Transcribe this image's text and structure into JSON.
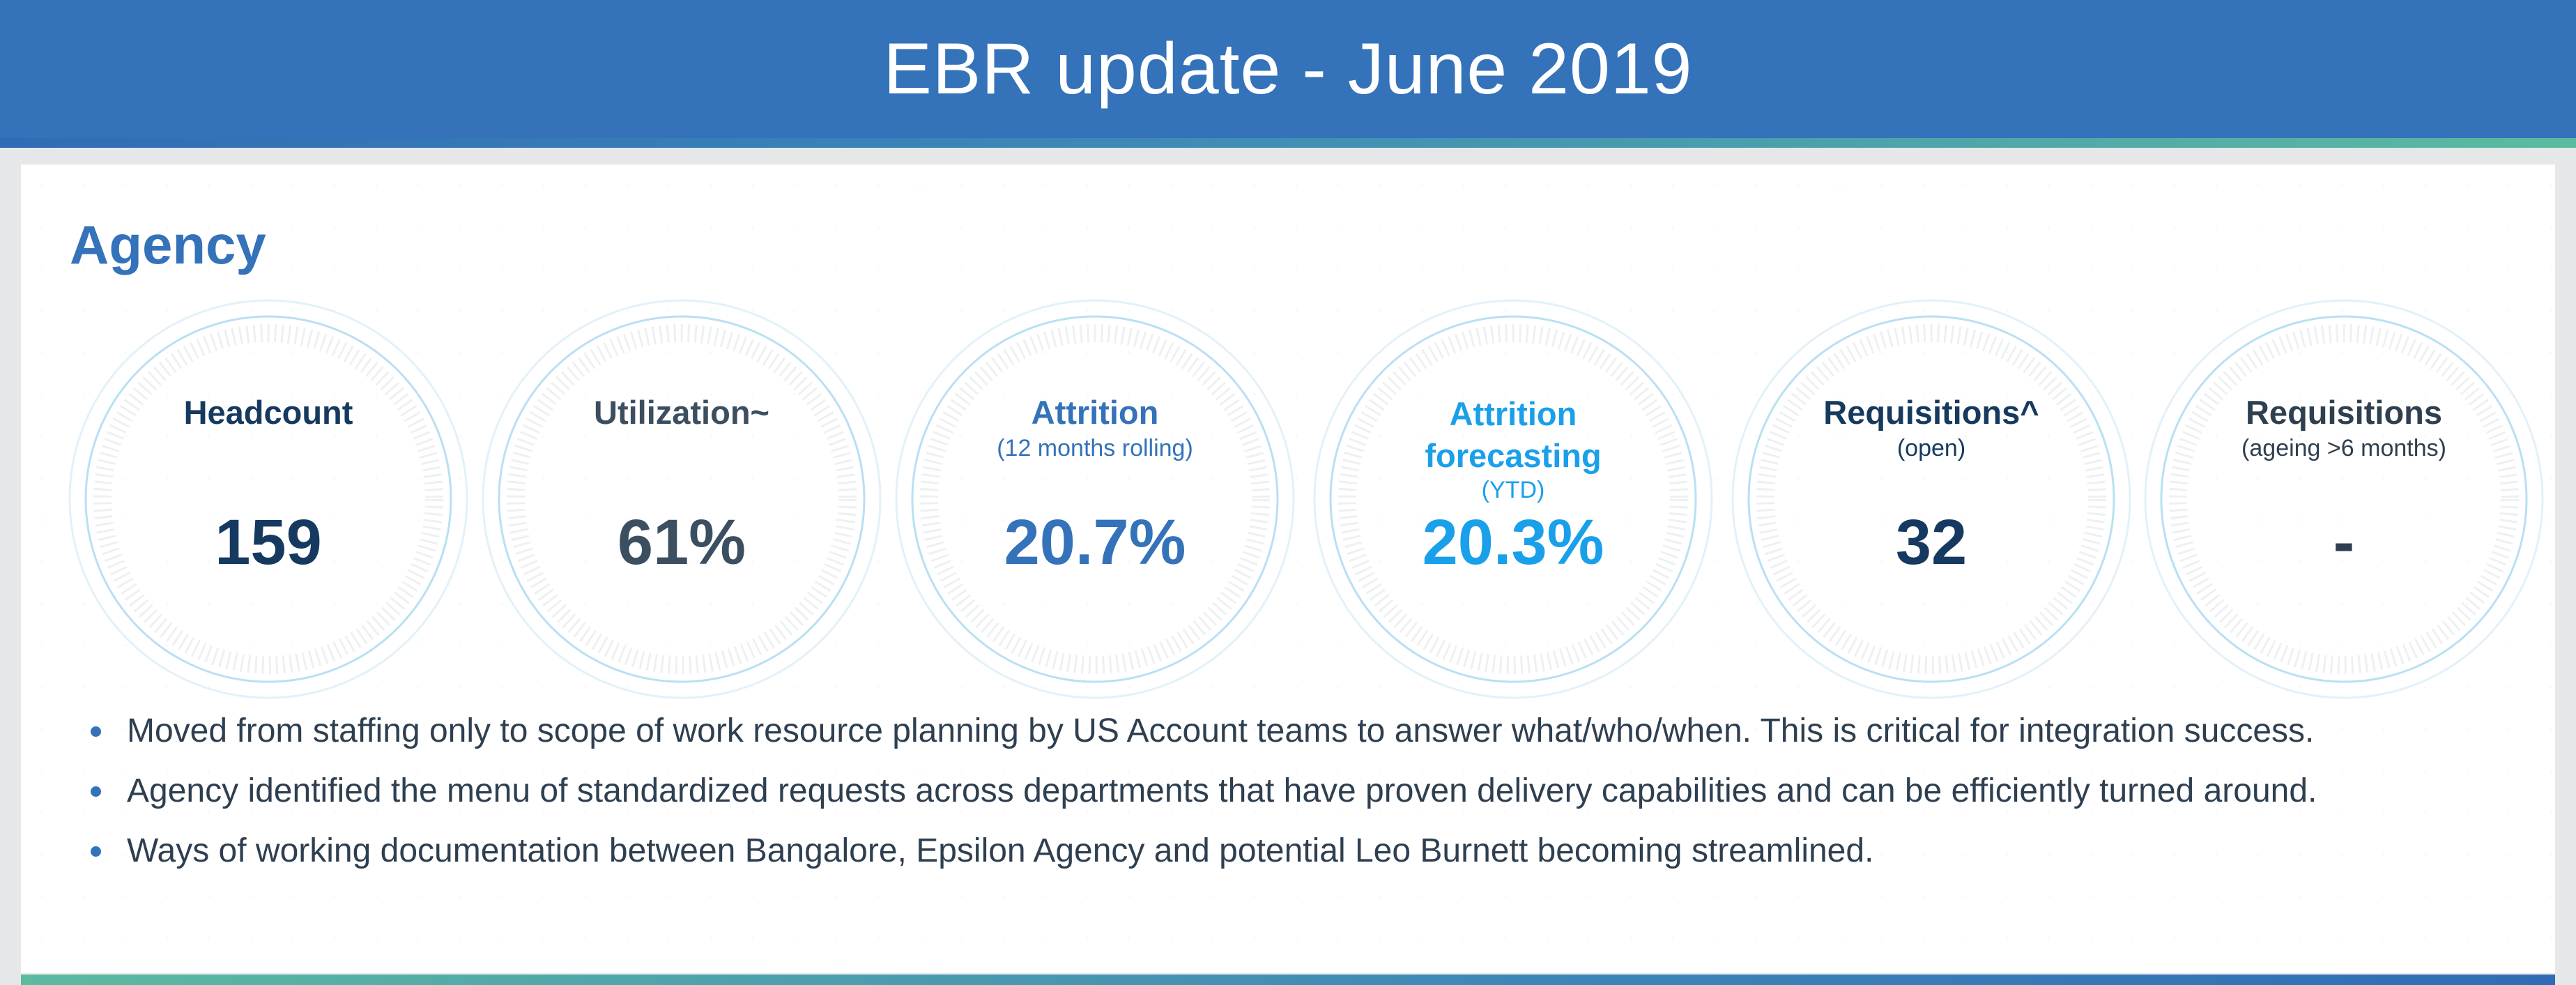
{
  "header": {
    "title": "EBR update - June 2019"
  },
  "section": {
    "title": "Agency"
  },
  "kpis": [
    {
      "label": "Headcount",
      "sub": "",
      "value": "159",
      "color": "#163a5f"
    },
    {
      "label": "Utilization~",
      "sub": "",
      "value": "61%",
      "color": "#3b4f60"
    },
    {
      "label": "Attrition",
      "sub": "(12 months rolling)",
      "value": "20.7%",
      "color": "#3472b9"
    },
    {
      "label": "Attrition forecasting",
      "sub": "(YTD)",
      "value": "20.3%",
      "color": "#1aa0ea"
    },
    {
      "label": "Requisitions^",
      "sub": "(open)",
      "value": "32",
      "color": "#163a5f"
    },
    {
      "label": "Requisitions",
      "sub": "(ageing >6 months)",
      "value": "-",
      "color": "#2e3f50"
    }
  ],
  "bullets": [
    "Moved from staffing only to scope of work resource planning by US Account teams to answer what/who/when. This is critical for integration success.",
    "Agency identified the menu of standardized requests across departments that have proven delivery capabilities and can be efficiently turned around.",
    "Ways of working documentation between Bangalore, Epsilon Agency and potential Leo Burnett becoming streamlined."
  ]
}
